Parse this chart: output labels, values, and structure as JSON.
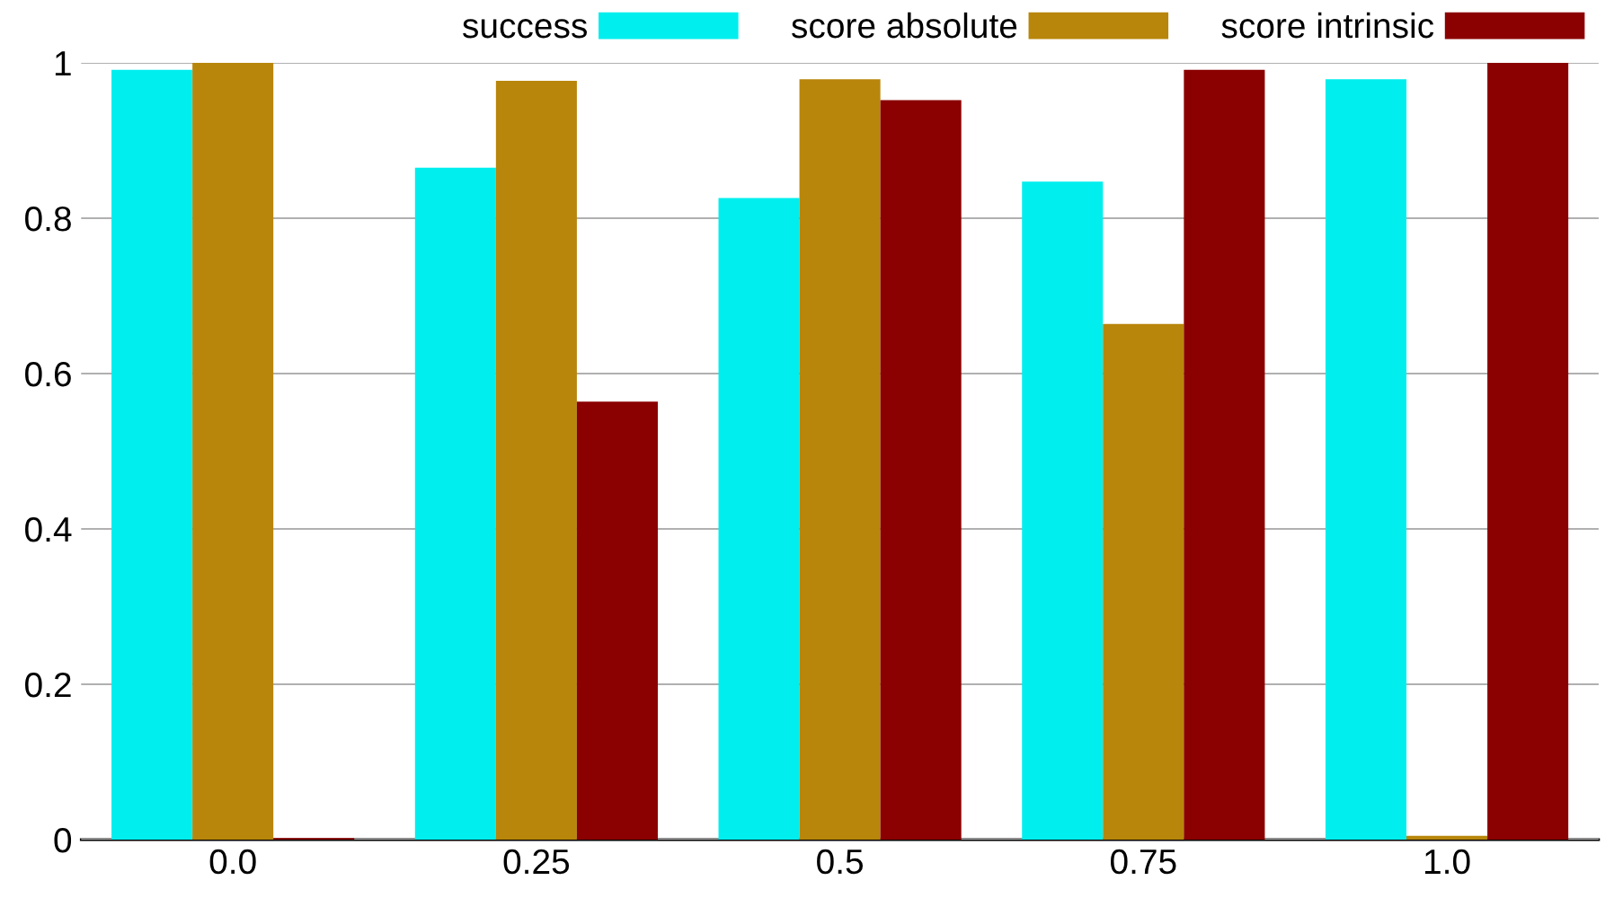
{
  "chart_data": {
    "type": "bar",
    "categories": [
      "0.0",
      "0.25",
      "0.5",
      "0.75",
      "1.0"
    ],
    "series": [
      {
        "name": "success",
        "color": "#00eeee",
        "values": [
          0.991,
          0.865,
          0.826,
          0.847,
          0.979
        ]
      },
      {
        "name": "score absolute",
        "color": "#b8860b",
        "values": [
          1.0,
          0.977,
          0.979,
          0.664,
          0.005
        ]
      },
      {
        "name": "score intrinsic",
        "color": "#8b0000",
        "values": [
          0.002,
          0.564,
          0.952,
          0.991,
          1.0
        ]
      }
    ],
    "ylim": [
      0,
      1
    ],
    "yticks": [
      0,
      0.2,
      0.4,
      0.6,
      0.8,
      1
    ],
    "grid": "y",
    "legend": "top right"
  }
}
